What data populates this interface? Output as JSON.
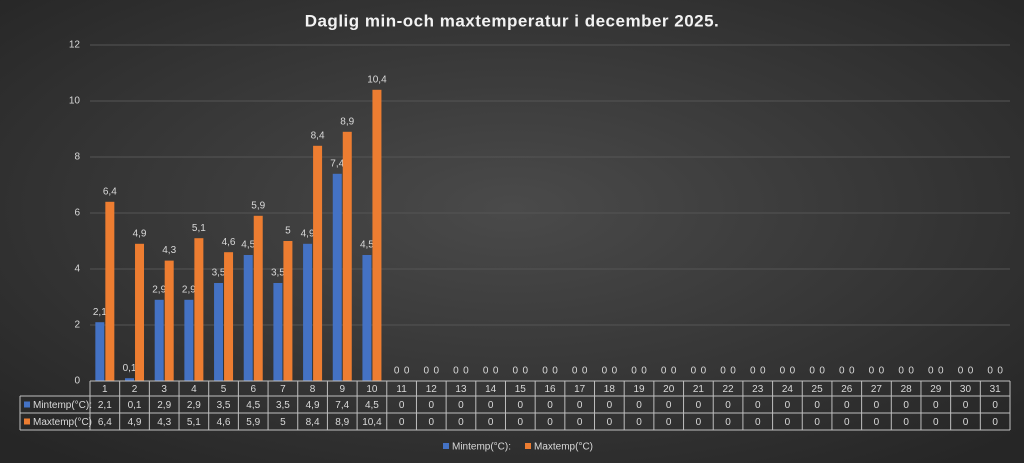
{
  "chart_data": {
    "type": "bar",
    "title": "Daglig min-och maxtemperatur i december 2025.",
    "categories": [
      "1",
      "2",
      "3",
      "4",
      "5",
      "6",
      "7",
      "8",
      "9",
      "10",
      "11",
      "12",
      "13",
      "14",
      "15",
      "16",
      "17",
      "18",
      "19",
      "20",
      "21",
      "22",
      "23",
      "24",
      "25",
      "26",
      "27",
      "28",
      "29",
      "30",
      "31"
    ],
    "series": [
      {
        "name": "Mintemp(°C):",
        "color": "#4472c4",
        "values": [
          2.1,
          0.1,
          2.9,
          2.9,
          3.5,
          4.5,
          3.5,
          4.9,
          7.4,
          4.5,
          0,
          0,
          0,
          0,
          0,
          0,
          0,
          0,
          0,
          0,
          0,
          0,
          0,
          0,
          0,
          0,
          0,
          0,
          0,
          0,
          0
        ],
        "value_labels": [
          "2,1",
          "0,1",
          "2,9",
          "2,9",
          "3,5",
          "4,5",
          "3,5",
          "4,9",
          "7,4",
          "4,5",
          "0",
          "0",
          "0",
          "0",
          "0",
          "0",
          "0",
          "0",
          "0",
          "0",
          "0",
          "0",
          "0",
          "0",
          "0",
          "0",
          "0",
          "0",
          "0",
          "0",
          "0"
        ]
      },
      {
        "name": "Maxtemp(°C)",
        "color": "#ed7d31",
        "values": [
          6.4,
          4.9,
          4.3,
          5.1,
          4.6,
          5.9,
          5,
          8.4,
          8.9,
          10.4,
          0,
          0,
          0,
          0,
          0,
          0,
          0,
          0,
          0,
          0,
          0,
          0,
          0,
          0,
          0,
          0,
          0,
          0,
          0,
          0,
          0
        ],
        "value_labels": [
          "6,4",
          "4,9",
          "4,3",
          "5,1",
          "4,6",
          "5,9",
          "5",
          "8,4",
          "8,9",
          "10,4",
          "0",
          "0",
          "0",
          "0",
          "0",
          "0",
          "0",
          "0",
          "0",
          "0",
          "0",
          "0",
          "0",
          "0",
          "0",
          "0",
          "0",
          "0",
          "0",
          "0",
          "0"
        ]
      }
    ],
    "ylim": [
      0,
      12
    ],
    "yticks": [
      0,
      2,
      4,
      6,
      8,
      10,
      12
    ],
    "grid": true,
    "legend": "bottom",
    "data_table": true
  }
}
